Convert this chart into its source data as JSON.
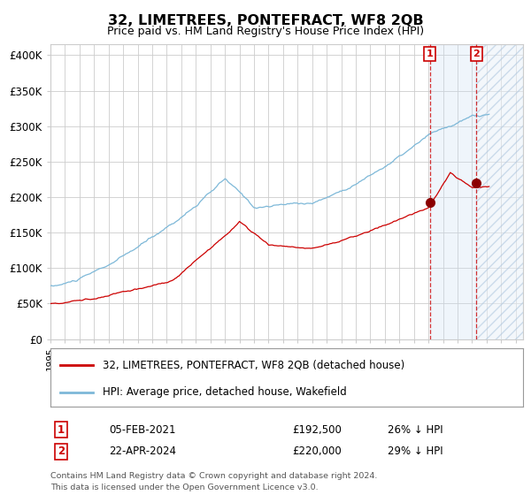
{
  "title": "32, LIMETREES, PONTEFRACT, WF8 2QB",
  "subtitle": "Price paid vs. HM Land Registry's House Price Index (HPI)",
  "ylabel_ticks": [
    "£0",
    "£50K",
    "£100K",
    "£150K",
    "£200K",
    "£250K",
    "£300K",
    "£350K",
    "£400K"
  ],
  "ytick_values": [
    0,
    50000,
    100000,
    150000,
    200000,
    250000,
    300000,
    350000,
    400000
  ],
  "ylim": [
    0,
    415000
  ],
  "xlim_start": 1995.0,
  "xlim_end": 2027.5,
  "hpi_color": "#7db8d8",
  "price_color": "#cc0000",
  "marker_color": "#8b0000",
  "vline_color": "#cc0000",
  "shade_color": "#ddeeff",
  "grid_color": "#cccccc",
  "legend_label_price": "32, LIMETREES, PONTEFRACT, WF8 2QB (detached house)",
  "legend_label_hpi": "HPI: Average price, detached house, Wakefield",
  "transaction1_date": "05-FEB-2021",
  "transaction1_price": "£192,500",
  "transaction1_pct": "26% ↓ HPI",
  "transaction1_year": 2021.09,
  "transaction1_value": 192500,
  "transaction2_date": "22-APR-2024",
  "transaction2_price": "£220,000",
  "transaction2_pct": "29% ↓ HPI",
  "transaction2_year": 2024.3,
  "transaction2_value": 220000,
  "footnote1": "Contains HM Land Registry data © Crown copyright and database right 2024.",
  "footnote2": "This data is licensed under the Open Government Licence v3.0.",
  "background_color": "#ffffff",
  "plot_bg_color": "#ffffff"
}
